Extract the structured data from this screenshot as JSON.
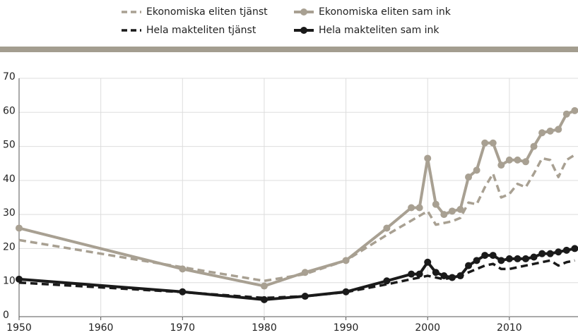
{
  "chart_data": {
    "type": "line",
    "xlim": [
      1950,
      2018.4
    ],
    "xticks": [
      1950,
      1960,
      1970,
      1980,
      1990,
      2000,
      2010
    ],
    "ylim": [
      0,
      70
    ],
    "yticks": [
      0,
      10,
      20,
      30,
      40,
      50,
      60,
      70
    ],
    "grid": true,
    "series": [
      {
        "name": "Ekonomiska eliten tjänst",
        "color": "#a8a092",
        "dashed": true,
        "markers": false,
        "x": [
          1950,
          1970,
          1980,
          1985,
          1990,
          1995,
          2000,
          2001,
          2003,
          2004,
          2005,
          2006,
          2007,
          2008,
          2009,
          2010,
          2011,
          2012,
          2013,
          2014,
          2015,
          2016,
          2017,
          2018
        ],
        "values": [
          22.5,
          14.5,
          10.5,
          12.5,
          16.5,
          24,
          31,
          27,
          28,
          29,
          33.5,
          33,
          38,
          42,
          35,
          36,
          39,
          38,
          42,
          46.5,
          46,
          41,
          46,
          47.5
        ]
      },
      {
        "name": "Ekonomiska eliten sam ink",
        "color": "#a8a092",
        "dashed": false,
        "markers": true,
        "x": [
          1950,
          1970,
          1980,
          1985,
          1990,
          1995,
          1998,
          1999,
          2000,
          2001,
          2002,
          2003,
          2004,
          2005,
          2006,
          2007,
          2008,
          2009,
          2010,
          2011,
          2012,
          2013,
          2014,
          2015,
          2016,
          2017,
          2018
        ],
        "values": [
          26,
          14,
          9,
          13,
          16.5,
          26,
          32,
          32,
          46.5,
          33,
          30,
          31,
          31.5,
          41,
          43,
          51,
          51,
          44.5,
          46,
          46,
          45.5,
          50,
          54,
          54.5,
          55,
          59.5,
          60.5
        ]
      },
      {
        "name": "Hela makteliten tjänst",
        "color": "#1a1a1a",
        "dashed": true,
        "markers": false,
        "x": [
          1950,
          1970,
          1980,
          1985,
          1990,
          1995,
          2000,
          2002,
          2004,
          2005,
          2006,
          2007,
          2008,
          2009,
          2010,
          2011,
          2012,
          2013,
          2014,
          2015,
          2016,
          2017,
          2018
        ],
        "values": [
          10,
          7.2,
          5.5,
          6,
          7.2,
          9.5,
          12,
          11,
          12,
          13,
          14,
          15,
          15.5,
          14,
          14,
          14.5,
          15,
          15.5,
          16,
          16.5,
          15,
          16,
          16.5
        ]
      },
      {
        "name": "Hela makteliten sam ink",
        "color": "#1a1a1a",
        "dashed": false,
        "markers": true,
        "x": [
          1950,
          1970,
          1980,
          1985,
          1990,
          1995,
          1998,
          1999,
          2000,
          2001,
          2002,
          2003,
          2004,
          2005,
          2006,
          2007,
          2008,
          2009,
          2010,
          2011,
          2012,
          2013,
          2014,
          2015,
          2016,
          2017,
          2018
        ],
        "values": [
          11,
          7.3,
          5,
          6,
          7.3,
          10.5,
          12.5,
          12.5,
          16,
          13,
          12,
          11.5,
          12,
          15,
          16.5,
          18,
          18,
          16.5,
          17,
          17,
          17,
          17.5,
          18.5,
          18.5,
          19,
          19.5,
          20
        ]
      }
    ]
  }
}
